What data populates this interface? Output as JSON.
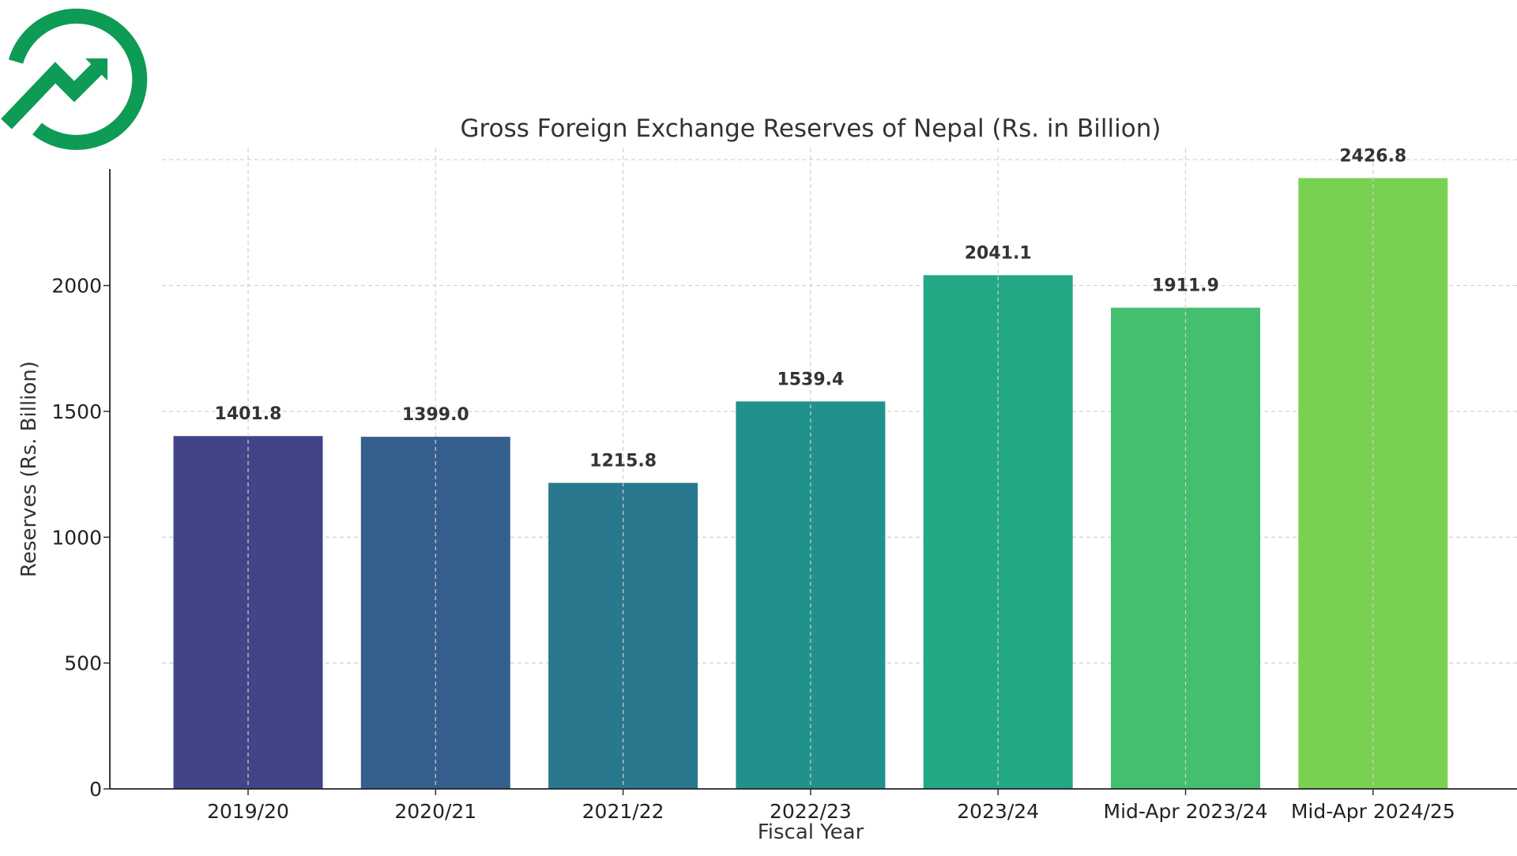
{
  "logo": {
    "icon": "growth-trend-icon",
    "color": "#0e9b55"
  },
  "chart_data": {
    "type": "bar",
    "title": "Gross Foreign Exchange Reserves of Nepal (Rs. in Billion)",
    "xlabel": "Fiscal Year",
    "ylabel": "Reserves (Rs. Billion)",
    "categories": [
      "2019/20",
      "2020/21",
      "2021/22",
      "2022/23",
      "2023/24",
      "Mid-Apr 2023/24",
      "Mid-Apr 2024/25"
    ],
    "values": [
      1401.8,
      1399.0,
      1215.8,
      1539.4,
      2041.1,
      1911.9,
      2426.8
    ],
    "value_labels": [
      "1401.8",
      "1399.0",
      "1215.8",
      "1539.4",
      "2041.1",
      "1911.9",
      "2426.8"
    ],
    "colors": [
      "#414487",
      "#355f8d",
      "#2a788e",
      "#21918c",
      "#22a884",
      "#44bf70",
      "#7ad151"
    ],
    "yticks": [
      0,
      500,
      1000,
      1500,
      2000
    ],
    "ylim": [
      0,
      2463
    ],
    "grid": true,
    "legend": "none"
  }
}
